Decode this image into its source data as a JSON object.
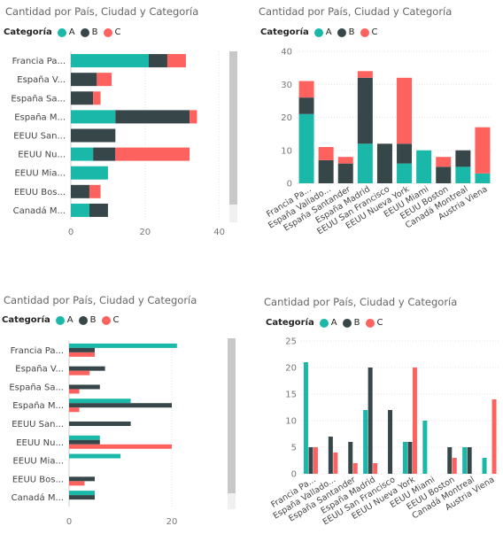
{
  "colors": {
    "A": "#1ab8a8",
    "B": "#374649",
    "C": "#fd625e",
    "grid": "#e6e6e6",
    "axis": "#777777"
  },
  "legend_title": "Categoría",
  "legend_items": [
    "A",
    "B",
    "C"
  ],
  "chart_data": [
    {
      "id": "c1",
      "type": "bar",
      "stacked": true,
      "orientation": "horizontal",
      "title": "Cantidad por País, Ciudad y Categoría",
      "categories": [
        "Francia Pa...",
        "España V...",
        "España Sa...",
        "España M...",
        "EEUU San...",
        "EEUU Nu...",
        "EEUU Mia...",
        "EEUU Bos...",
        "Canadá M..."
      ],
      "series": [
        {
          "name": "A",
          "values": [
            21,
            0,
            0,
            12,
            0,
            6,
            10,
            0,
            5
          ]
        },
        {
          "name": "B",
          "values": [
            5,
            7,
            6,
            20,
            12,
            6,
            0,
            5,
            5
          ]
        },
        {
          "name": "C",
          "values": [
            5,
            4,
            2,
            2,
            0,
            20,
            0,
            3,
            0
          ]
        }
      ],
      "xticks": [
        0,
        20,
        40
      ],
      "xlim": [
        0,
        42
      ],
      "grid": true,
      "legend": "top-left"
    },
    {
      "id": "c2",
      "type": "bar",
      "stacked": true,
      "orientation": "vertical",
      "title": "Cantidad por País, Ciudad y Categoría",
      "categories": [
        "Francia Pa...",
        "España Vallado...",
        "España Santander",
        "España Madrid",
        "EEUU San Francisco",
        "EEUU Nueva York",
        "EEUU Miami",
        "EEUU Boston",
        "Canadá Montreal",
        "Austria Viena"
      ],
      "series": [
        {
          "name": "A",
          "values": [
            21,
            0,
            0,
            12,
            0,
            6,
            10,
            0,
            5,
            3
          ]
        },
        {
          "name": "B",
          "values": [
            5,
            7,
            6,
            20,
            12,
            6,
            0,
            5,
            5,
            0
          ]
        },
        {
          "name": "C",
          "values": [
            5,
            4,
            2,
            2,
            0,
            20,
            0,
            3,
            0,
            14
          ]
        }
      ],
      "yticks": [
        0,
        10,
        20,
        30,
        40
      ],
      "ylim": [
        0,
        40
      ],
      "grid": true,
      "legend": "top-left"
    },
    {
      "id": "c3",
      "type": "bar",
      "stacked": false,
      "orientation": "horizontal",
      "title": "Cantidad por País, Ciudad y Categoría",
      "categories": [
        "Francia Pa...",
        "España V...",
        "España Sa...",
        "España M...",
        "EEUU San...",
        "EEUU Nu...",
        "EEUU Mia...",
        "EEUU Bos...",
        "Canadá M..."
      ],
      "series": [
        {
          "name": "A",
          "values": [
            21,
            0,
            0,
            12,
            0,
            6,
            10,
            0,
            5
          ]
        },
        {
          "name": "B",
          "values": [
            5,
            7,
            6,
            20,
            12,
            6,
            0,
            5,
            5
          ]
        },
        {
          "name": "C",
          "values": [
            5,
            4,
            2,
            2,
            0,
            20,
            0,
            3,
            0
          ]
        }
      ],
      "xticks": [
        0,
        20
      ],
      "xlim": [
        0,
        30
      ],
      "grid": true,
      "legend": "top-left"
    },
    {
      "id": "c4",
      "type": "bar",
      "stacked": false,
      "orientation": "vertical",
      "title": "Cantidad por País, Ciudad y Categoría",
      "categories": [
        "Francia Pa...",
        "España Vallado...",
        "España Santander",
        "España Madrid",
        "EEUU San Francisco",
        "EEUU Nueva York",
        "EEUU Miami",
        "EEUU Boston",
        "Canadá Montreal",
        "Austria Viena"
      ],
      "series": [
        {
          "name": "A",
          "values": [
            21,
            0,
            0,
            12,
            0,
            6,
            10,
            0,
            5,
            3
          ]
        },
        {
          "name": "B",
          "values": [
            5,
            7,
            6,
            20,
            12,
            6,
            0,
            5,
            5,
            0
          ]
        },
        {
          "name": "C",
          "values": [
            5,
            4,
            2,
            2,
            0,
            20,
            0,
            3,
            0,
            14
          ]
        }
      ],
      "yticks": [
        0,
        5,
        10,
        15,
        20,
        25
      ],
      "ylim": [
        0,
        25
      ],
      "grid": true,
      "legend": "top-left"
    }
  ]
}
